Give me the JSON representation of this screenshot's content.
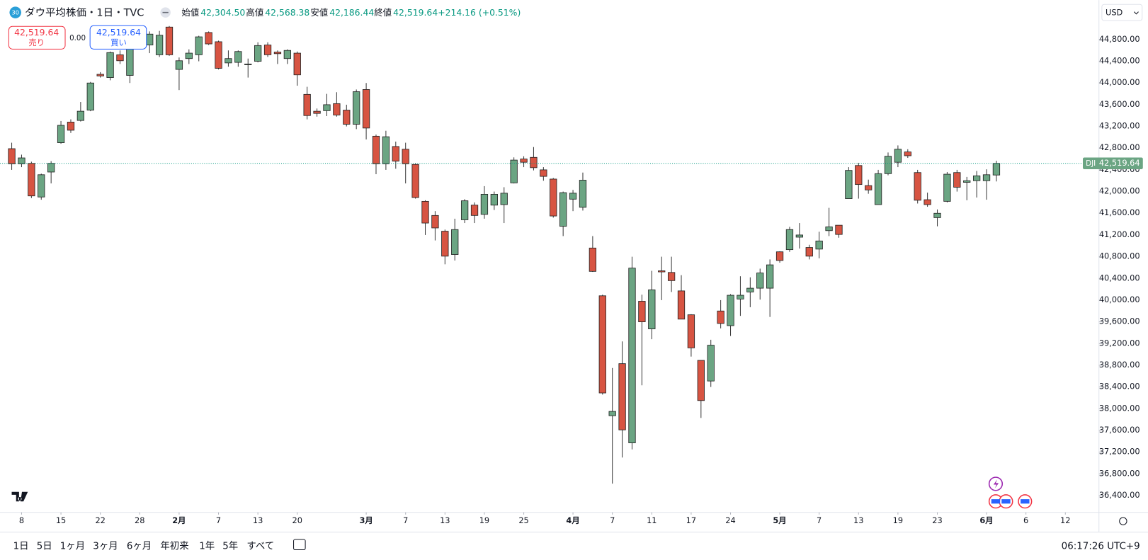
{
  "header": {
    "badge": "30",
    "title": "ダウ平均株価・1日・TVC",
    "legend": {
      "open_label": "始値",
      "open": "42,304.50",
      "high_label": "高値",
      "high": "42,568.38",
      "low_label": "安値",
      "low": "42,186.44",
      "close_label": "終値",
      "close": "42,519.64",
      "change": "+214.16 (+0.51%)"
    },
    "sell": {
      "price": "42,519.64",
      "label": "売り"
    },
    "spread": "0.00",
    "buy": {
      "price": "42,519.64",
      "label": "買い"
    },
    "currency": "USD"
  },
  "toolbar": {
    "ranges": [
      "1日",
      "5日",
      "1ヶ月",
      "3ヶ月",
      "6ヶ月",
      "年初来",
      "1年",
      "5年",
      "すべて"
    ],
    "time": "06:17:26 UTC+9"
  },
  "chart_data": {
    "type": "candlestick",
    "up_color": "#6ba583",
    "down_color": "#d75442",
    "grid": false,
    "xlim": [
      -1.19,
      110.34
    ],
    "ylim": [
      36090,
      45528
    ],
    "xticks": [
      {
        "value": 1,
        "label": "8"
      },
      {
        "value": 5,
        "label": "15"
      },
      {
        "value": 9,
        "label": "22"
      },
      {
        "value": 13,
        "label": "28"
      },
      {
        "value": 17,
        "label": "2月"
      },
      {
        "value": 21,
        "label": "7"
      },
      {
        "value": 25,
        "label": "13"
      },
      {
        "value": 29,
        "label": "20"
      },
      {
        "value": 36,
        "label": "3月"
      },
      {
        "value": 40,
        "label": "7"
      },
      {
        "value": 44,
        "label": "13"
      },
      {
        "value": 48,
        "label": "19"
      },
      {
        "value": 52,
        "label": "25"
      },
      {
        "value": 57,
        "label": "4月"
      },
      {
        "value": 61,
        "label": "7"
      },
      {
        "value": 65,
        "label": "11"
      },
      {
        "value": 69,
        "label": "17"
      },
      {
        "value": 73,
        "label": "24"
      },
      {
        "value": 78,
        "label": "5月"
      },
      {
        "value": 82,
        "label": "7"
      },
      {
        "value": 86,
        "label": "13"
      },
      {
        "value": 90,
        "label": "19"
      },
      {
        "value": 94,
        "label": "23"
      },
      {
        "value": 99,
        "label": "6月"
      },
      {
        "value": 103,
        "label": "6"
      },
      {
        "value": 107,
        "label": "12"
      }
    ],
    "yticks": [
      {
        "value": 36400,
        "label": "36,400.00"
      },
      {
        "value": 36800,
        "label": "36,800.00"
      },
      {
        "value": 37200,
        "label": "37,200.00"
      },
      {
        "value": 37600,
        "label": "37,600.00"
      },
      {
        "value": 38000,
        "label": "38,000.00"
      },
      {
        "value": 38400,
        "label": "38,400.00"
      },
      {
        "value": 38800,
        "label": "38,800.00"
      },
      {
        "value": 39200,
        "label": "39,200.00"
      },
      {
        "value": 39600,
        "label": "39,600.00"
      },
      {
        "value": 40000,
        "label": "40,000.00"
      },
      {
        "value": 40400,
        "label": "40,400.00"
      },
      {
        "value": 40800,
        "label": "40,800.00"
      },
      {
        "value": 41200,
        "label": "41,200.00"
      },
      {
        "value": 41600,
        "label": "41,600.00"
      },
      {
        "value": 42000,
        "label": "42,000.00"
      },
      {
        "value": 42400,
        "label": "42,400.00"
      },
      {
        "value": 42800,
        "label": "42,800.00"
      },
      {
        "value": 43200,
        "label": "43,200.00"
      },
      {
        "value": 43600,
        "label": "43,600.00"
      },
      {
        "value": 44000,
        "label": "44,000.00"
      },
      {
        "value": 44400,
        "label": "44,400.00"
      },
      {
        "value": 44800,
        "label": "44,800.00"
      }
    ],
    "last_price": {
      "symbol": "DJI",
      "value": 42519.64,
      "label": "42,519.64"
    },
    "open": [
      42790,
      42510,
      42520,
      41900,
      42360,
      42900,
      43280,
      43310,
      43500,
      44160,
      44100,
      44520,
      44140,
      44720,
      44700,
      44520,
      45030,
      44250,
      44450,
      44520,
      44930,
      44760,
      44370,
      44380,
      44340,
      44400,
      44700,
      44570,
      44450,
      44550,
      43790,
      43480,
      43490,
      43620,
      43500,
      43240,
      43880,
      43020,
      42510,
      42830,
      42780,
      42500,
      41820,
      41560,
      41270,
      40840,
      41480,
      41750,
      41580,
      41750,
      41760,
      42160,
      42600,
      42630,
      42400,
      42230,
      41360,
      41860,
      41710,
      40960,
      40080,
      37870,
      38830,
      37370,
      39980,
      39470,
      40540,
      40510,
      40170,
      39730,
      38890,
      38510,
      39800,
      39530,
      40020,
      40150,
      40220,
      40220,
      40890,
      40930,
      41160,
      40970,
      40940,
      41280,
      41380,
      41870,
      42480,
      42110,
      41760,
      42330,
      42540,
      42730,
      42350,
      41850,
      41520,
      41820,
      42350,
      42170,
      42200,
      42200,
      42304.5
    ],
    "high": [
      42900,
      42680,
      42550,
      42330,
      42560,
      43300,
      43330,
      43650,
      44020,
      44200,
      44580,
      44600,
      44900,
      45000,
      44950,
      44960,
      45050,
      44470,
      44620,
      44870,
      44950,
      44780,
      44600,
      44600,
      44450,
      44750,
      44750,
      44600,
      44620,
      44580,
      43930,
      43530,
      43800,
      43830,
      43600,
      43880,
      44000,
      43050,
      43120,
      42920,
      42900,
      42520,
      41840,
      41640,
      41300,
      41500,
      41860,
      41800,
      42100,
      42000,
      42080,
      42630,
      42650,
      42820,
      42450,
      42250,
      42000,
      42030,
      42350,
      41180,
      40100,
      38750,
      39240,
      40800,
      40100,
      40540,
      40800,
      40800,
      40460,
      39740,
      38890,
      39270,
      40000,
      40110,
      40440,
      40420,
      40580,
      40750,
      40900,
      41350,
      41420,
      41020,
      41260,
      41700,
      41380,
      42450,
      42530,
      42220,
      42400,
      42720,
      42850,
      42780,
      42400,
      41980,
      41670,
      42360,
      42400,
      42270,
      42380,
      42410,
      42568.38
    ],
    "low": [
      42400,
      42450,
      41880,
      41850,
      42150,
      42880,
      43080,
      43290,
      43480,
      44100,
      44050,
      44350,
      44000,
      44650,
      44550,
      44480,
      44500,
      43870,
      44350,
      44400,
      44700,
      44250,
      44300,
      44300,
      44100,
      44380,
      44480,
      44350,
      44350,
      43950,
      43330,
      43380,
      43390,
      43380,
      43200,
      43150,
      42960,
      42320,
      42400,
      42420,
      42150,
      41870,
      41200,
      41100,
      40660,
      40730,
      41420,
      41420,
      41500,
      41660,
      41420,
      42150,
      42450,
      42390,
      42200,
      41520,
      41180,
      41640,
      41650,
      40520,
      38260,
      36620,
      37100,
      37250,
      38430,
      39280,
      40000,
      40150,
      39650,
      38960,
      37830,
      38400,
      39480,
      39340,
      39710,
      39870,
      40010,
      39690,
      40690,
      40890,
      40950,
      40750,
      40770,
      41180,
      41150,
      41870,
      41870,
      41960,
      41760,
      42300,
      42450,
      42620,
      41780,
      41720,
      41360,
      41800,
      42000,
      41840,
      41890,
      41850,
      42186.44
    ],
    "close": [
      42510,
      42620,
      41920,
      42310,
      42520,
      43220,
      43130,
      43480,
      44000,
      44130,
      44560,
      44410,
      44830,
      44920,
      44900,
      44880,
      44520,
      44410,
      44550,
      44850,
      44720,
      44270,
      44450,
      44580,
      44350,
      44690,
      44520,
      44540,
      44600,
      44150,
      43400,
      43440,
      43600,
      43410,
      43240,
      43840,
      43170,
      42510,
      43010,
      42560,
      42510,
      41890,
      41420,
      41330,
      40810,
      41300,
      41830,
      41560,
      41950,
      41950,
      41970,
      42580,
      42540,
      42440,
      42280,
      41550,
      41980,
      41970,
      42210,
      40530,
      38290,
      37950,
      37610,
      40590,
      39600,
      40190,
      40520,
      40360,
      39650,
      39120,
      38150,
      39170,
      39570,
      40090,
      40090,
      40220,
      40500,
      40650,
      40730,
      41300,
      41200,
      40810,
      41090,
      41350,
      41210,
      42390,
      42130,
      42030,
      42330,
      42650,
      42780,
      42660,
      41840,
      41760,
      41600,
      42320,
      42080,
      42200,
      42290,
      42310,
      42519.64
    ]
  }
}
